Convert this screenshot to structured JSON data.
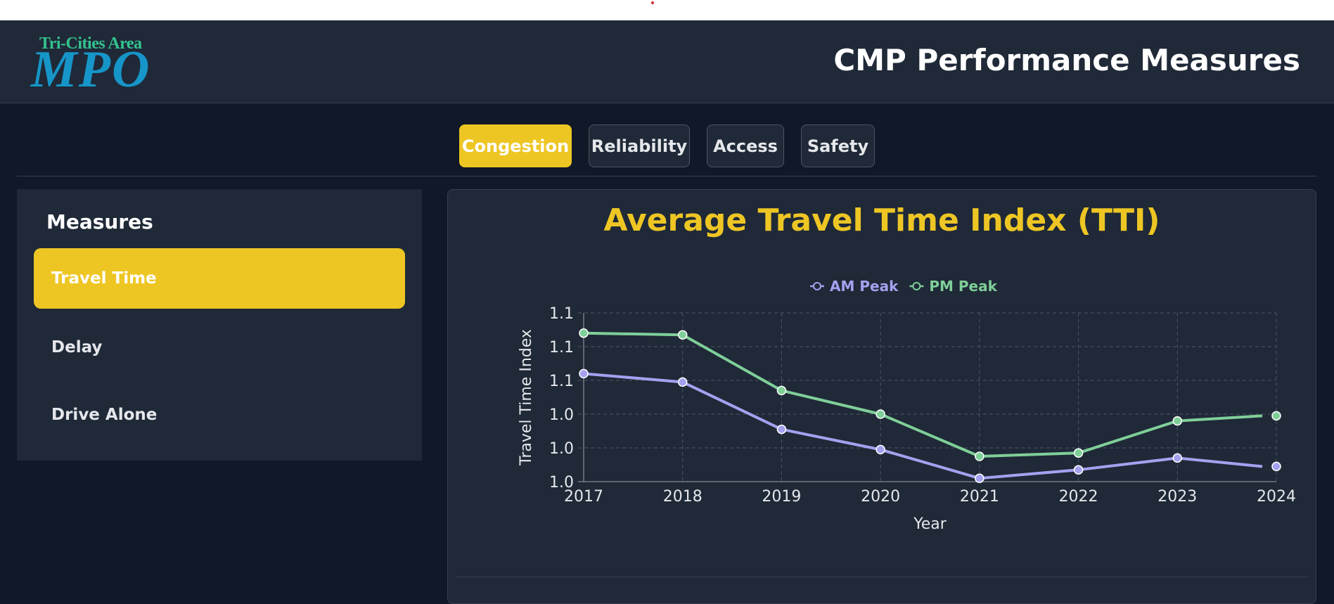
{
  "header": {
    "logo_small": "Tri-Cities Area",
    "logo_big": "MPO",
    "title": "CMP Performance Measures"
  },
  "tabs": [
    {
      "label": "Congestion",
      "active": true
    },
    {
      "label": "Reliability",
      "active": false
    },
    {
      "label": "Access",
      "active": false
    },
    {
      "label": "Safety",
      "active": false
    }
  ],
  "sidebar": {
    "title": "Measures",
    "items": [
      {
        "label": "Travel Time",
        "active": true
      },
      {
        "label": "Delay",
        "active": false
      },
      {
        "label": "Drive Alone",
        "active": false
      }
    ]
  },
  "colors": {
    "accent": "#eec624",
    "am_peak": "#a5a1f0",
    "pm_peak": "#7fcf99"
  },
  "chart_data": {
    "type": "line",
    "title": "Average Travel Time Index (TTI)",
    "xlabel": "Year",
    "ylabel": "Travel Time Index",
    "x": [
      "2017",
      "2018",
      "2019",
      "2020",
      "2021",
      "2022",
      "2023",
      "2024"
    ],
    "y_tick_labels": [
      "1.0",
      "1.0",
      "1.0",
      "1.1",
      "1.1",
      "1.1"
    ],
    "ylim": [
      1.0,
      1.1
    ],
    "grid": true,
    "legend": "top-center",
    "series": [
      {
        "name": "AM Peak",
        "color": "#a5a1f0",
        "values": [
          1.064,
          1.059,
          1.031,
          1.019,
          1.002,
          1.007,
          1.014,
          1.009
        ]
      },
      {
        "name": "PM Peak",
        "color": "#7fcf99",
        "values": [
          1.088,
          1.087,
          1.054,
          1.04,
          1.015,
          1.017,
          1.036,
          1.039
        ]
      }
    ]
  }
}
